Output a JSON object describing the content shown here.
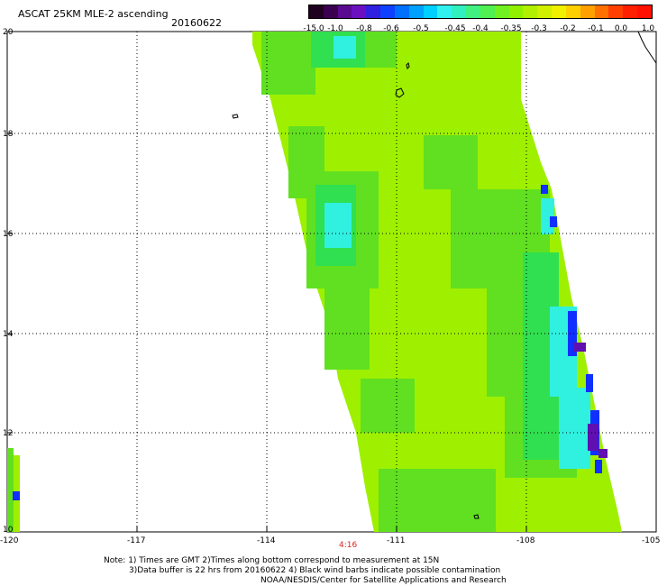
{
  "header": {
    "title": "ASCAT 25KM MLE-2 ascending",
    "date": "20160622"
  },
  "colorbar": {
    "labels": [
      "-15.0",
      "-1.0",
      "-0.8",
      "-0.6",
      "-0.5",
      "-0.45",
      "-0.4",
      "-0.35",
      "-0.3",
      "-0.2",
      "-0.1",
      "0.0",
      "1.0"
    ],
    "colors": [
      "#2a002a",
      "#4a0a6a",
      "#6a10b0",
      "#2020e0",
      "#0070ff",
      "#00c0ff",
      "#30f0f0",
      "#40f070",
      "#60e020",
      "#a0f000",
      "#f0f000",
      "#ff8000",
      "#ff2000"
    ]
  },
  "axes": {
    "lat_labels": [
      "20",
      "18",
      "16",
      "14",
      "12",
      "10"
    ],
    "lon_labels": [
      "-120",
      "-117",
      "-114",
      "-111",
      "-108",
      "-105"
    ]
  },
  "swath_colors": {
    "lime": "#9ef000",
    "green": "#60e020",
    "bright_green": "#30e050",
    "cyan": "#30f0e0",
    "blue": "#1030ff",
    "purple": "#6010b0"
  },
  "timestamp": "4:16",
  "notes": {
    "line1": "Note: 1) Times are GMT 2)Times along bottom correspond to measurement at 15N",
    "line2": "3)Data buffer is 22 hrs from 20160622 4) Black wind barbs indicate possible contamination",
    "line3": "NOAA/NESDIS/Center for Satellite Applications and Research"
  }
}
